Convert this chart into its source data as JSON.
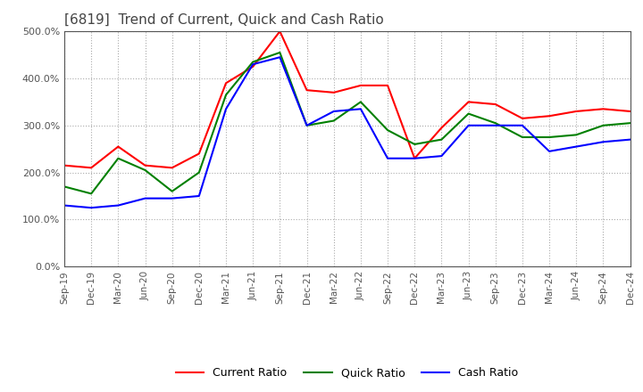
{
  "title": "[6819]  Trend of Current, Quick and Cash Ratio",
  "x_labels": [
    "Sep-19",
    "Dec-19",
    "Mar-20",
    "Jun-20",
    "Sep-20",
    "Dec-20",
    "Mar-21",
    "Jun-21",
    "Sep-21",
    "Dec-21",
    "Mar-22",
    "Jun-22",
    "Sep-22",
    "Dec-22",
    "Mar-23",
    "Jun-23",
    "Sep-23",
    "Dec-23",
    "Mar-24",
    "Jun-24",
    "Sep-24",
    "Dec-24"
  ],
  "current_ratio": [
    215,
    210,
    255,
    215,
    210,
    240,
    390,
    425,
    500,
    375,
    370,
    385,
    385,
    230,
    295,
    350,
    345,
    315,
    320,
    330,
    335,
    330
  ],
  "quick_ratio": [
    170,
    155,
    230,
    205,
    160,
    200,
    365,
    435,
    455,
    300,
    310,
    350,
    290,
    260,
    270,
    325,
    305,
    275,
    275,
    280,
    300,
    305
  ],
  "cash_ratio": [
    130,
    125,
    130,
    145,
    145,
    150,
    335,
    430,
    445,
    300,
    330,
    335,
    230,
    230,
    235,
    300,
    300,
    300,
    245,
    255,
    265,
    270
  ],
  "ylim": [
    0,
    500
  ],
  "yticks": [
    0,
    100,
    200,
    300,
    400,
    500
  ],
  "current_color": "#ff0000",
  "quick_color": "#008000",
  "cash_color": "#0000ff",
  "bg_color": "#ffffff",
  "plot_bg_color": "#ffffff",
  "grid_color": "#aaaaaa",
  "title_fontsize": 11,
  "legend_labels": [
    "Current Ratio",
    "Quick Ratio",
    "Cash Ratio"
  ]
}
